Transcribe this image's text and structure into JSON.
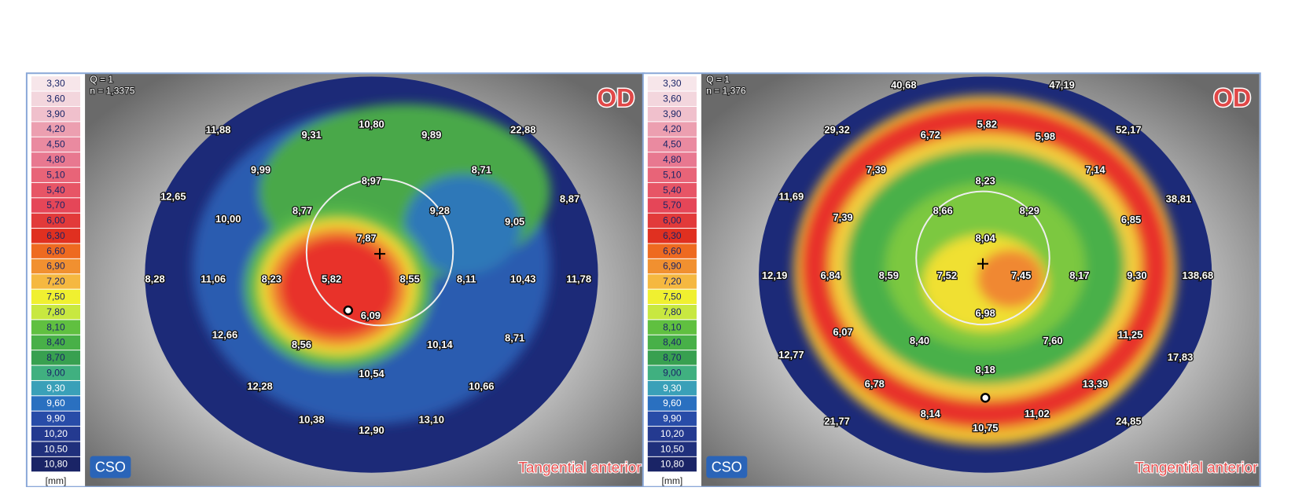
{
  "legend": {
    "unit": "[mm]",
    "items": [
      {
        "label": "3,30",
        "color": "#f7e6ea"
      },
      {
        "label": "3,60",
        "color": "#f3d6dd"
      },
      {
        "label": "3,90",
        "color": "#f0c0cc"
      },
      {
        "label": "4,20",
        "color": "#ec9fb0"
      },
      {
        "label": "4,50",
        "color": "#ea8aa0"
      },
      {
        "label": "4,80",
        "color": "#e87890"
      },
      {
        "label": "5,10",
        "color": "#e86478"
      },
      {
        "label": "5,40",
        "color": "#e75566"
      },
      {
        "label": "5,70",
        "color": "#e54658"
      },
      {
        "label": "6,00",
        "color": "#e23a3a"
      },
      {
        "label": "6,30",
        "color": "#e03020"
      },
      {
        "label": "6,60",
        "color": "#ee6a20"
      },
      {
        "label": "6,90",
        "color": "#f19030"
      },
      {
        "label": "7,20",
        "color": "#f5b840"
      },
      {
        "label": "7,50",
        "color": "#f0f030"
      },
      {
        "label": "7,80",
        "color": "#c8e840"
      },
      {
        "label": "8,10",
        "color": "#60c040"
      },
      {
        "label": "8,40",
        "color": "#48b048"
      },
      {
        "label": "8,70",
        "color": "#38a050"
      },
      {
        "label": "9,00",
        "color": "#40b080"
      },
      {
        "label": "9,30",
        "color": "#3aa0b8"
      },
      {
        "label": "9,60",
        "color": "#2a70c0"
      },
      {
        "label": "9,90",
        "color": "#284ca8"
      },
      {
        "label": "10,20",
        "color": "#243a90"
      },
      {
        "label": "10,50",
        "color": "#20307c"
      },
      {
        "label": "10,80",
        "color": "#1a2466"
      }
    ]
  },
  "panels": [
    {
      "eye": "OD",
      "map_type": "Tangential anterior",
      "logo": "CSO",
      "info": [
        "Q = 1",
        "n = 1,3375"
      ],
      "labels": [
        "11,88",
        "9,31",
        "10,80",
        "9,89",
        "22,88",
        "9,99",
        "8,71",
        "8,97",
        "12,65",
        "8,77",
        "9,28",
        "10,00",
        "9,05",
        "8,87",
        "7,87",
        "8,28",
        "11,06",
        "8,23",
        "5,82",
        "8,55",
        "8,11",
        "10,43",
        "11,78",
        "6,09",
        "12,66",
        "8,56",
        "10,14",
        "8,71",
        "10,54",
        "12,28",
        "10,66",
        "10,38",
        "12,90",
        "13,10"
      ]
    },
    {
      "eye": "OD",
      "map_type": "Tangential anterior",
      "logo": "CSO",
      "info": [
        "Q = 1",
        "n = 1,376"
      ],
      "labels": [
        "40,68",
        "47,19",
        "29,32",
        "6,72",
        "5,82",
        "5,98",
        "52,17",
        "7,39",
        "7,14",
        "8,23",
        "11,69",
        "8,66",
        "8,29",
        "7,39",
        "6,85",
        "38,81",
        "8,04",
        "12,19",
        "6,84",
        "8,59",
        "7,52",
        "7,45",
        "8,17",
        "9,30",
        "138,68",
        "6,98",
        "6,07",
        "8,40",
        "7,60",
        "11,25",
        "12,77",
        "17,83",
        "8,18",
        "6,78",
        "13,39",
        "8,14",
        "11,02",
        "21,77",
        "10,75",
        "24,85"
      ]
    }
  ]
}
